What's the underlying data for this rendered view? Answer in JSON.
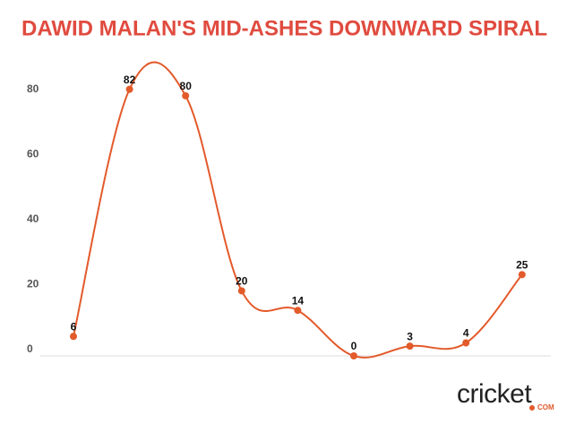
{
  "chart_data": {
    "type": "line",
    "title": "DAWID MALAN'S MID-ASHES DOWNWARD SPIRAL",
    "categories": [
      null,
      null,
      null,
      null,
      null,
      null,
      null,
      null,
      null
    ],
    "values": [
      6,
      82,
      80,
      20,
      14,
      0,
      3,
      4,
      25
    ],
    "color": "#e35a2b",
    "title_color": "#e04b3f",
    "ylim": [
      0,
      90
    ],
    "yticks": [
      0,
      20,
      40,
      60,
      80
    ],
    "grid": false
  },
  "logo": {
    "text": "cricket",
    "suffix": "COM"
  }
}
